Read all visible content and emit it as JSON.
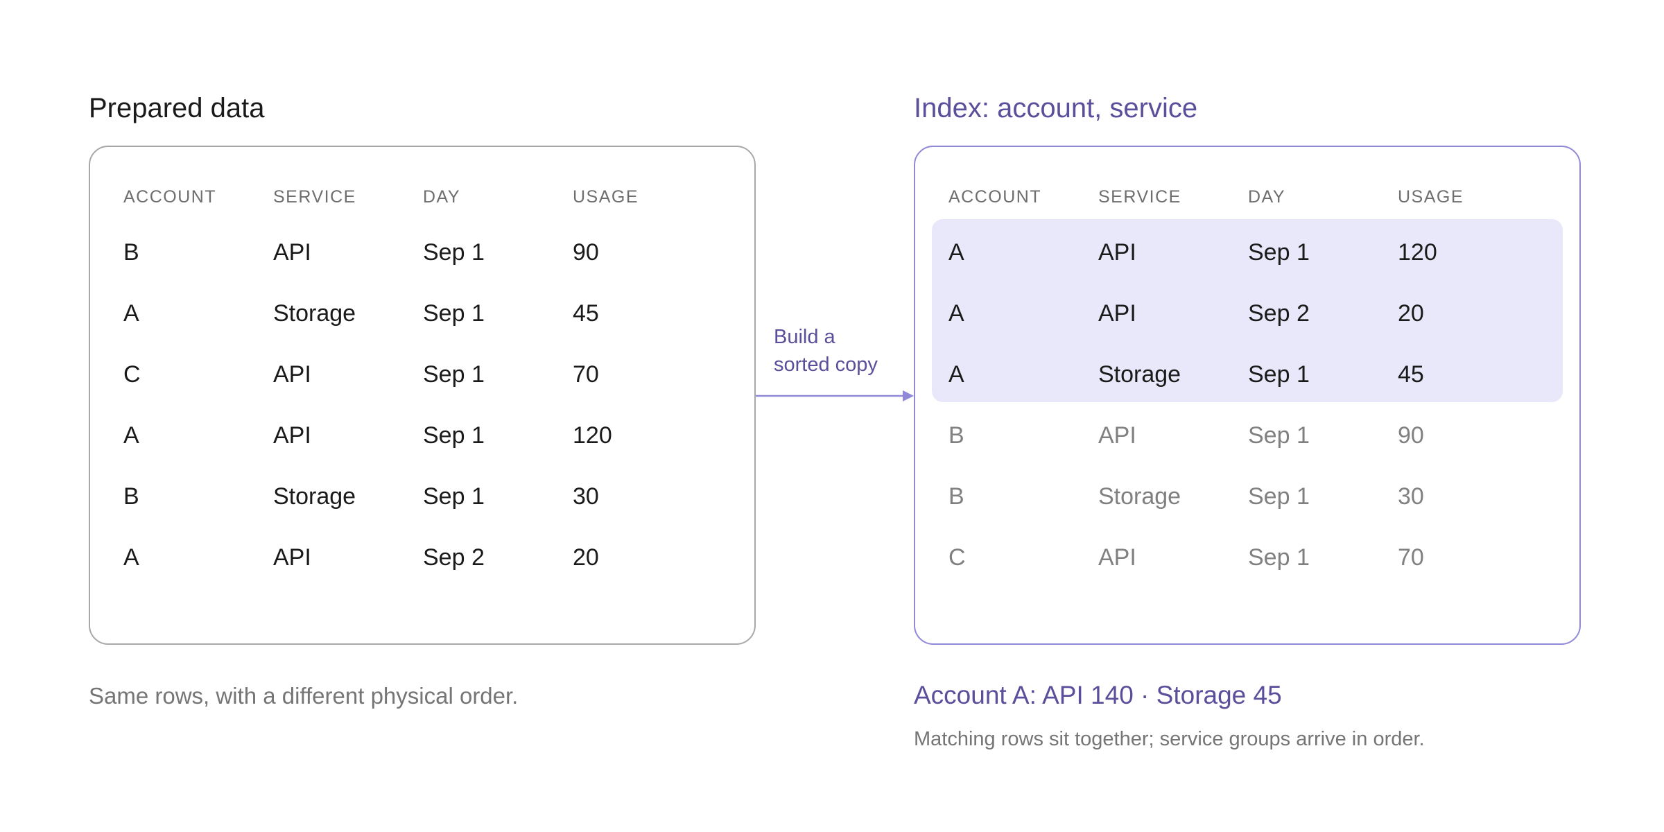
{
  "left_panel": {
    "title": "Prepared data",
    "columns": [
      "ACCOUNT",
      "SERVICE",
      "DAY",
      "USAGE"
    ],
    "rows": [
      [
        "B",
        "API",
        "Sep 1",
        "90"
      ],
      [
        "A",
        "Storage",
        "Sep 1",
        "45"
      ],
      [
        "C",
        "API",
        "Sep 1",
        "70"
      ],
      [
        "A",
        "API",
        "Sep 1",
        "120"
      ],
      [
        "B",
        "Storage",
        "Sep 1",
        "30"
      ],
      [
        "A",
        "API",
        "Sep 2",
        "20"
      ]
    ],
    "caption": "Same rows, with a different physical order."
  },
  "arrow": {
    "label_line1": "Build a",
    "label_line2": "sorted copy",
    "color": "#8f89d8"
  },
  "right_panel": {
    "title": "Index: account, service",
    "columns": [
      "ACCOUNT",
      "SERVICE",
      "DAY",
      "USAGE"
    ],
    "rows": [
      [
        "A",
        "API",
        "Sep 1",
        "120"
      ],
      [
        "A",
        "API",
        "Sep 2",
        "20"
      ],
      [
        "A",
        "Storage",
        "Sep 1",
        "45"
      ],
      [
        "B",
        "API",
        "Sep 1",
        "90"
      ],
      [
        "B",
        "Storage",
        "Sep 1",
        "30"
      ],
      [
        "C",
        "API",
        "Sep 1",
        "70"
      ]
    ],
    "highlighted_rows": 3,
    "summary": "Account A: API 140 · Storage 45",
    "caption": "Matching rows sit together; service groups arrive in order."
  },
  "colors": {
    "accent": "#5a4f9a",
    "accent_border": "#8f89d8",
    "highlight_fill": "#e8e8fa",
    "neutral_border": "#a8a8a8",
    "muted_text": "#808080"
  }
}
